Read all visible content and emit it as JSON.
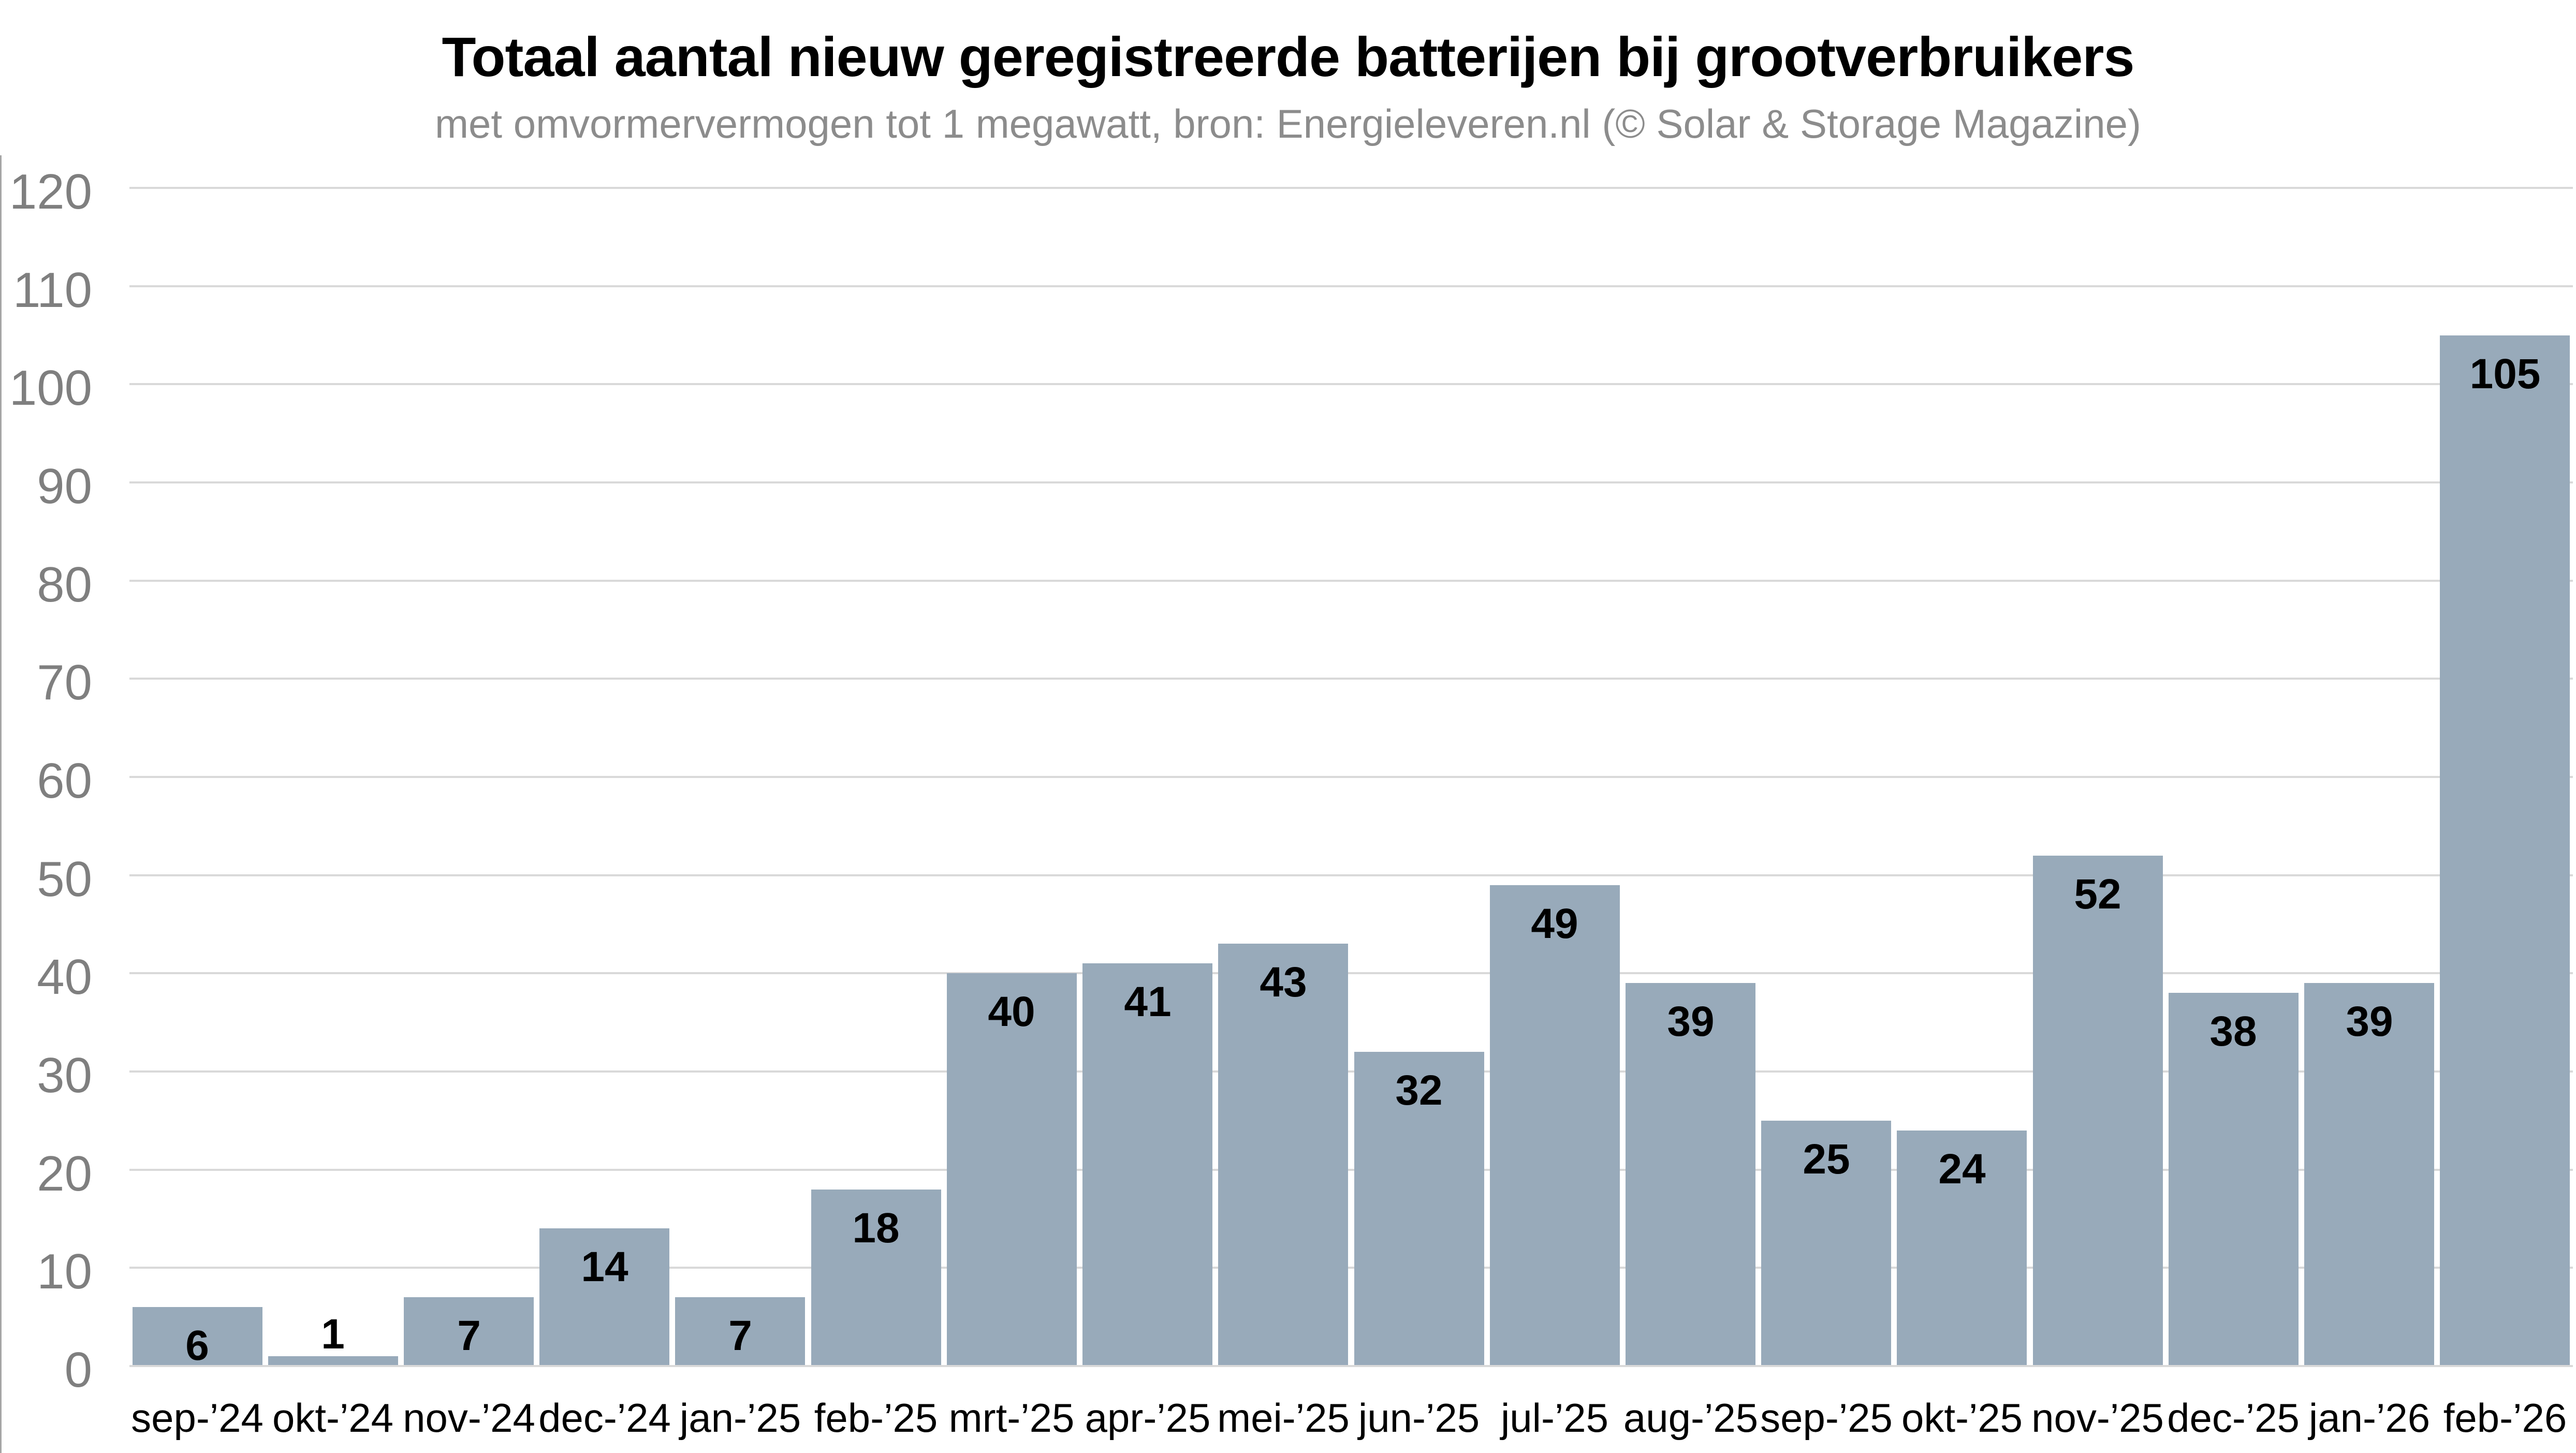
{
  "page": {
    "background_color": "#ffffff",
    "left_edge_line_color": "#a6a6a6"
  },
  "chart_data": {
    "type": "bar",
    "title": "Totaal aantal nieuw geregistreerde batterijen bij grootverbruikers",
    "subtitle": "met omvormervermogen tot 1 megawatt, bron: Energieleveren.nl (© Solar & Storage Magazine)",
    "categories": [
      "sep-’24",
      "okt-’24",
      "nov-’24",
      "dec-’24",
      "jan-’25",
      "feb-’25",
      "mrt-’25",
      "apr-’25",
      "mei-’25",
      "jun-’25",
      "jul-’25",
      "aug-’25",
      "sep-’25",
      "okt-’25",
      "nov-’25",
      "dec-’25",
      "jan-’26",
      "feb-’26"
    ],
    "values": [
      6,
      1,
      7,
      14,
      7,
      18,
      40,
      41,
      43,
      32,
      49,
      39,
      25,
      24,
      52,
      38,
      39,
      105
    ],
    "xlabel": "",
    "ylabel": "",
    "ylim": [
      0,
      120
    ],
    "ytick_step": 10,
    "yticks": [
      0,
      10,
      20,
      30,
      40,
      50,
      60,
      70,
      80,
      90,
      100,
      110,
      120
    ],
    "grid": true,
    "legend_position": "none",
    "data_labels": "inside-end",
    "colors": {
      "bar": "#98aaba",
      "gridline": "#d9d9d9",
      "axis_line": "#d9d9d9",
      "y_tick_label": "#7f7f7f",
      "x_tick_label": "#000000",
      "value_label": "#000000",
      "title": "#000000",
      "subtitle": "#8c8c8c"
    }
  }
}
